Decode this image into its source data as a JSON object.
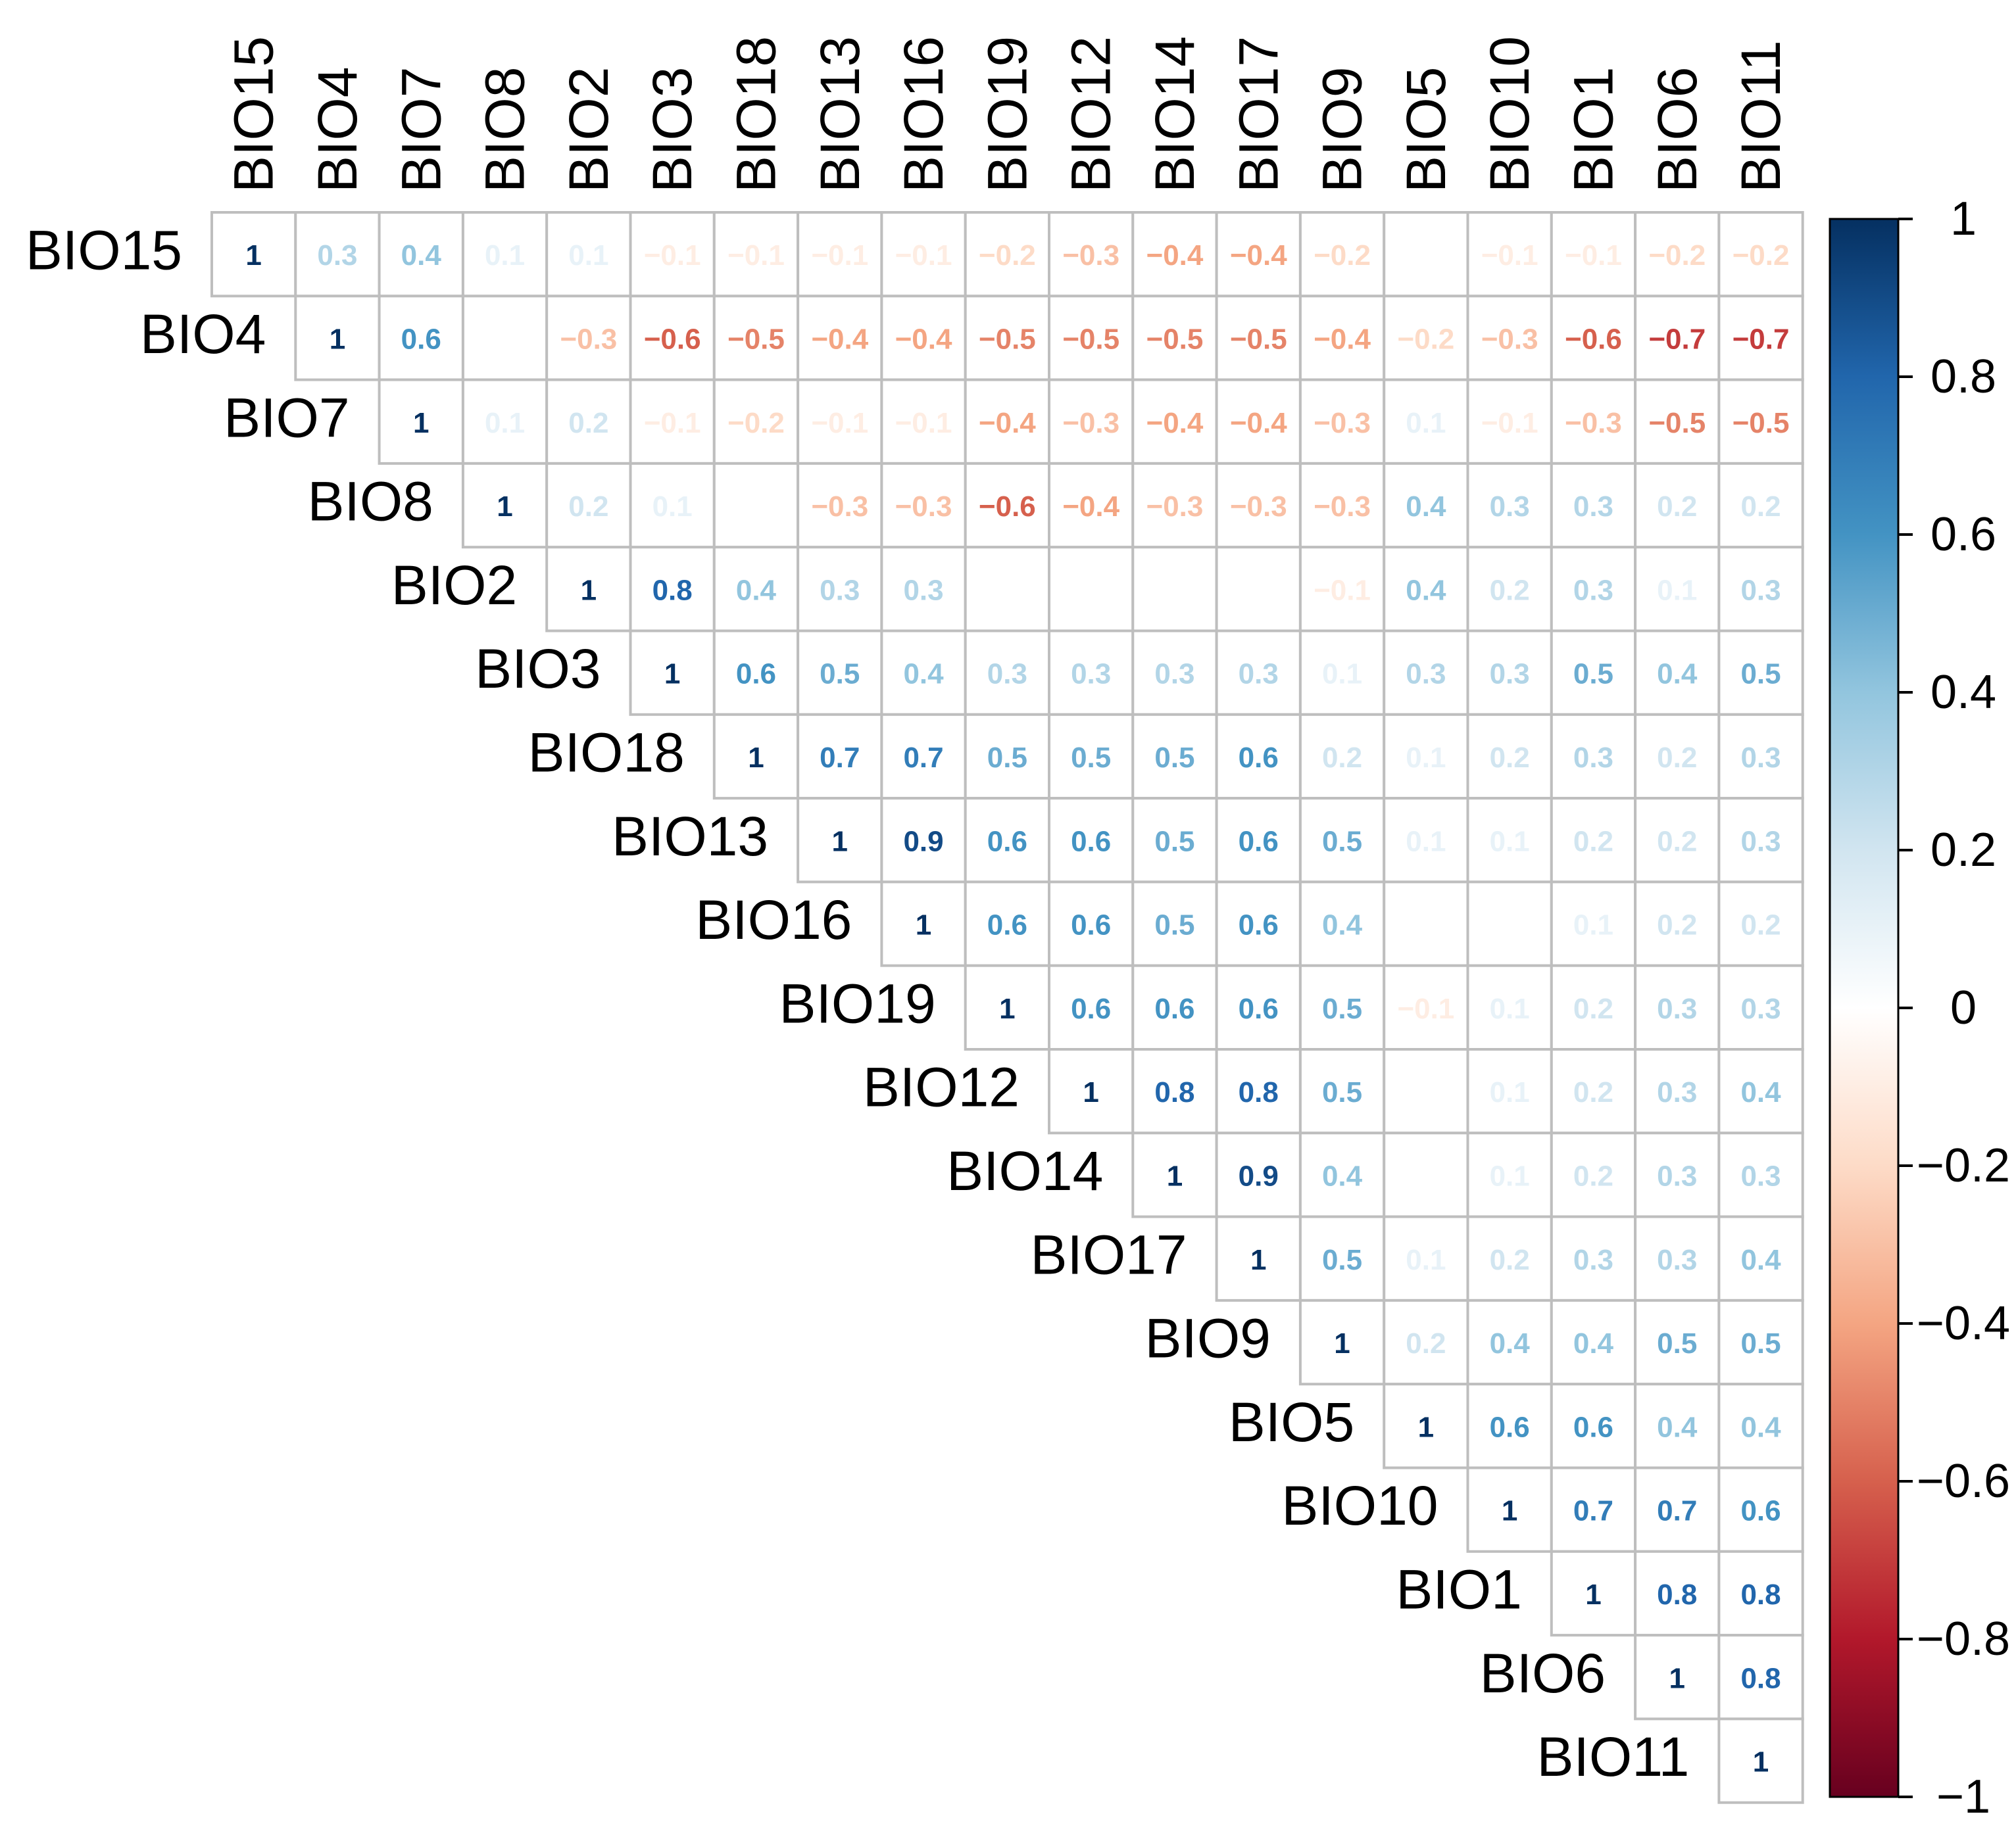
{
  "chart_data": {
    "type": "heatmap",
    "variant": "upper-triangle correlation matrix",
    "variables": [
      "BIO15",
      "BIO4",
      "BIO7",
      "BIO8",
      "BIO2",
      "BIO3",
      "BIO18",
      "BIO13",
      "BIO16",
      "BIO19",
      "BIO12",
      "BIO14",
      "BIO17",
      "BIO9",
      "BIO5",
      "BIO10",
      "BIO1",
      "BIO6",
      "BIO11"
    ],
    "matrix": [
      [
        1,
        0.3,
        0.4,
        0.1,
        0.1,
        -0.1,
        -0.1,
        -0.1,
        -0.1,
        -0.2,
        -0.3,
        -0.4,
        -0.4,
        -0.2,
        0,
        -0.1,
        -0.1,
        -0.2,
        -0.2
      ],
      [
        null,
        1,
        0.6,
        0,
        -0.3,
        -0.6,
        -0.5,
        -0.4,
        -0.4,
        -0.5,
        -0.5,
        -0.5,
        -0.5,
        -0.4,
        -0.2,
        -0.3,
        -0.6,
        -0.7,
        -0.7
      ],
      [
        null,
        null,
        1,
        0.1,
        0.2,
        -0.1,
        -0.2,
        -0.1,
        -0.1,
        -0.4,
        -0.3,
        -0.4,
        -0.4,
        -0.3,
        0.1,
        -0.1,
        -0.3,
        -0.5,
        -0.5
      ],
      [
        null,
        null,
        null,
        1,
        0.2,
        0.1,
        0,
        -0.3,
        -0.3,
        -0.6,
        -0.4,
        -0.3,
        -0.3,
        -0.3,
        0.4,
        0.3,
        0.3,
        0.2,
        0.2
      ],
      [
        null,
        null,
        null,
        null,
        1,
        0.8,
        0.4,
        0.3,
        0.3,
        0,
        0,
        0,
        0,
        -0.1,
        0.4,
        0.2,
        0.3,
        0.1,
        0.3
      ],
      [
        null,
        null,
        null,
        null,
        null,
        1,
        0.6,
        0.5,
        0.4,
        0.3,
        0.3,
        0.3,
        0.3,
        0.1,
        0.3,
        0.3,
        0.5,
        0.4,
        0.5
      ],
      [
        null,
        null,
        null,
        null,
        null,
        null,
        1,
        0.7,
        0.7,
        0.5,
        0.5,
        0.5,
        0.6,
        0.2,
        0.1,
        0.2,
        0.3,
        0.2,
        0.3
      ],
      [
        null,
        null,
        null,
        null,
        null,
        null,
        null,
        1,
        0.9,
        0.6,
        0.6,
        0.5,
        0.6,
        0.5,
        0.1,
        0.1,
        0.2,
        0.2,
        0.3
      ],
      [
        null,
        null,
        null,
        null,
        null,
        null,
        null,
        null,
        1,
        0.6,
        0.6,
        0.5,
        0.6,
        0.4,
        0,
        0,
        0.1,
        0.2,
        0.2
      ],
      [
        null,
        null,
        null,
        null,
        null,
        null,
        null,
        null,
        null,
        1,
        0.6,
        0.6,
        0.6,
        0.5,
        -0.1,
        0.1,
        0.2,
        0.3,
        0.3
      ],
      [
        null,
        null,
        null,
        null,
        null,
        null,
        null,
        null,
        null,
        null,
        1,
        0.8,
        0.8,
        0.5,
        0,
        0.1,
        0.2,
        0.3,
        0.4
      ],
      [
        null,
        null,
        null,
        null,
        null,
        null,
        null,
        null,
        null,
        null,
        null,
        1,
        0.9,
        0.4,
        0,
        0.1,
        0.2,
        0.3,
        0.3
      ],
      [
        null,
        null,
        null,
        null,
        null,
        null,
        null,
        null,
        null,
        null,
        null,
        null,
        1,
        0.5,
        0.1,
        0.2,
        0.3,
        0.3,
        0.4
      ],
      [
        null,
        null,
        null,
        null,
        null,
        null,
        null,
        null,
        null,
        null,
        null,
        null,
        null,
        1,
        0.2,
        0.4,
        0.4,
        0.5,
        0.5
      ],
      [
        null,
        null,
        null,
        null,
        null,
        null,
        null,
        null,
        null,
        null,
        null,
        null,
        null,
        null,
        1,
        0.6,
        0.6,
        0.4,
        0.4
      ],
      [
        null,
        null,
        null,
        null,
        null,
        null,
        null,
        null,
        null,
        null,
        null,
        null,
        null,
        null,
        null,
        1,
        0.7,
        0.7,
        0.6
      ],
      [
        null,
        null,
        null,
        null,
        null,
        null,
        null,
        null,
        null,
        null,
        null,
        null,
        null,
        null,
        null,
        null,
        1,
        0.8,
        0.8
      ],
      [
        null,
        null,
        null,
        null,
        null,
        null,
        null,
        null,
        null,
        null,
        null,
        null,
        null,
        null,
        null,
        null,
        null,
        1,
        0.8
      ],
      [
        null,
        null,
        null,
        null,
        null,
        null,
        null,
        null,
        null,
        null,
        null,
        null,
        null,
        null,
        null,
        null,
        null,
        null,
        1
      ]
    ],
    "hidden_cell_labels": [
      [
        1,
        3
      ],
      [
        3,
        6
      ],
      [
        4,
        9
      ],
      [
        4,
        10
      ],
      [
        4,
        11
      ],
      [
        4,
        12
      ],
      [
        8,
        14
      ],
      [
        11,
        14
      ]
    ],
    "legend": {
      "range": [
        -1,
        1
      ],
      "ticks": [
        1,
        0.8,
        0.6,
        0.4,
        0.2,
        0,
        -0.2,
        -0.4,
        -0.6,
        -0.8,
        -1
      ],
      "tick_labels": [
        "1",
        "0.8",
        "0.6",
        "0.4",
        "0.2",
        "0",
        "−0.2",
        "−0.4",
        "−0.6",
        "−0.8",
        "−1"
      ],
      "placement": "right"
    },
    "palette": [
      "#67001F",
      "#B2182B",
      "#D6604D",
      "#F4A582",
      "#FDDBC7",
      "#FFFFFF",
      "#D1E5F0",
      "#92C5DE",
      "#4393C3",
      "#2166AC",
      "#053061"
    ],
    "grid_color": "#BEBEBE",
    "title": "",
    "xlabel": "",
    "ylabel": ""
  }
}
